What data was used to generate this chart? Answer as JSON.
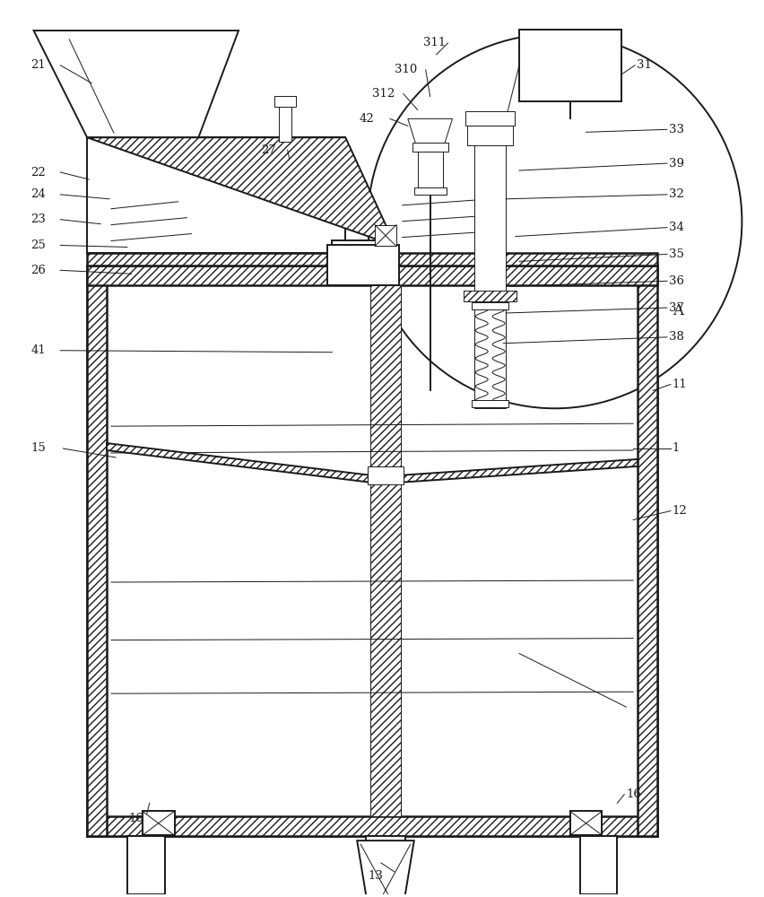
{
  "bg_color": "#ffffff",
  "lc": "#1a1a1a",
  "lw_main": 1.4,
  "lw_thin": 0.7,
  "lw_thick": 1.8,
  "fig_w": 8.53,
  "fig_h": 10.0
}
